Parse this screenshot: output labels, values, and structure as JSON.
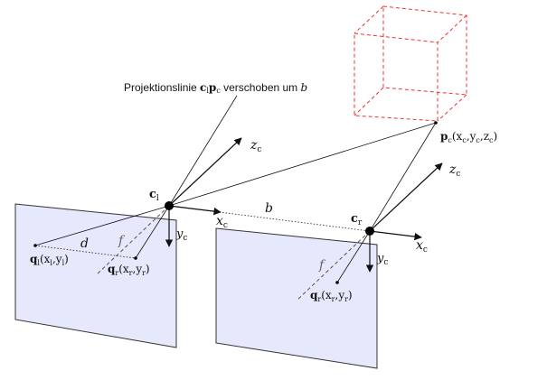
{
  "caption": "Projektionslinie cₗpᶜ verschoben um b",
  "caption_parts": {
    "prefix": "Projektionslinie ",
    "c": "c",
    "c_sub": "l",
    "p": "p",
    "p_sub": "c",
    "middle": " verschoben um ",
    "b": "b"
  },
  "left_camera": {
    "center_label": "c",
    "center_sub": "l",
    "axis_x": "x",
    "axis_y": "y",
    "axis_z": "z",
    "axis_sub": "c",
    "focal": "f",
    "disparity": "d",
    "point_ql": {
      "q": "q",
      "sub": "l",
      "args": "(x",
      "args_x_sub": "l",
      "comma": ",y",
      "args_y_sub": "l",
      "close": ")"
    },
    "point_qr": {
      "q": "q",
      "sub": "r",
      "args": "(x",
      "args_x_sub": "r",
      "comma": ",y",
      "args_y_sub": "r",
      "close": ")"
    }
  },
  "right_camera": {
    "center_label": "c",
    "center_sub": "r",
    "axis_x": "x",
    "axis_y": "y",
    "axis_z": "z",
    "axis_sub": "c",
    "focal": "f",
    "point_qr": {
      "q": "q",
      "sub": "r",
      "args": "(x",
      "args_x_sub": "r",
      "comma": ",y",
      "args_y_sub": "r",
      "close": ")"
    }
  },
  "baseline": "b",
  "world_point": {
    "p": "p",
    "sub": "c",
    "args": "(x",
    "x_sub": "c",
    "y": ",y",
    "y_sub": "c",
    "z": ",z",
    "z_sub": "c",
    "close": ")"
  },
  "colors": {
    "plane_fill": "#e6e8fb",
    "plane_stroke": "#333333",
    "cube_stroke": "#ee3333",
    "line": "#111111",
    "dashed": "#555555"
  }
}
